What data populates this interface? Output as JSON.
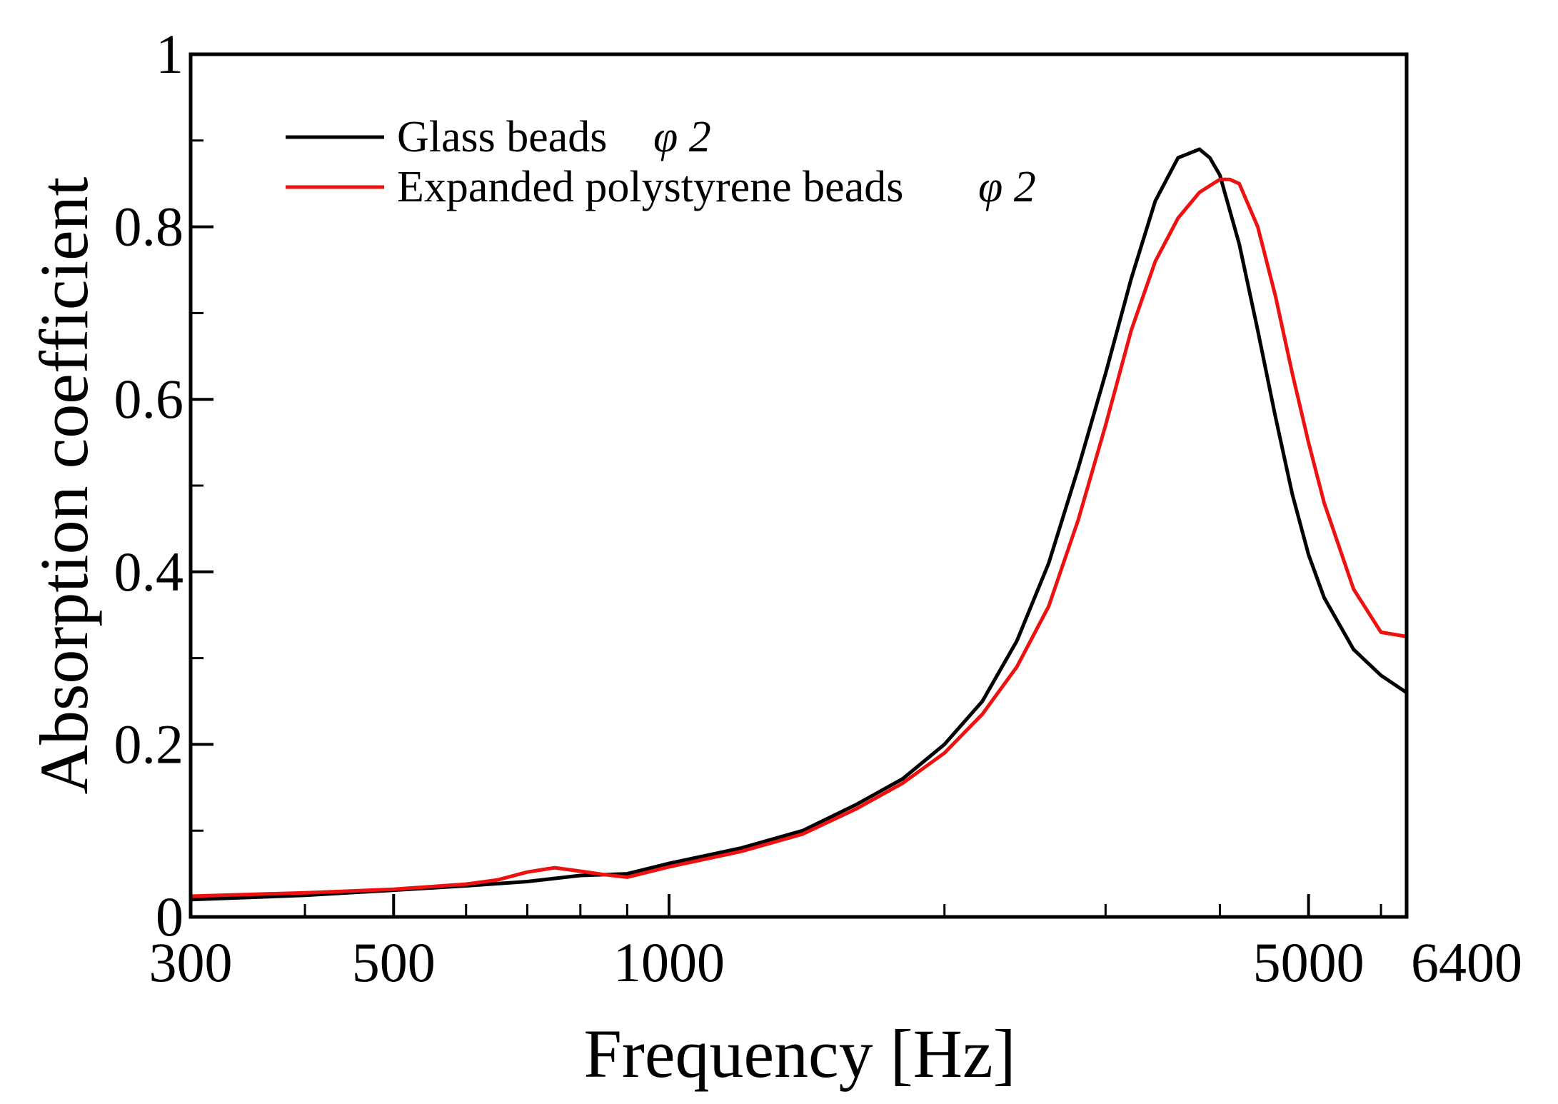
{
  "chart_data": {
    "type": "line",
    "title": "",
    "xlabel": "Frequency [Hz]",
    "ylabel": "Absorption coefficient",
    "xscale": "log",
    "xlim": [
      300,
      6400
    ],
    "ylim": [
      0,
      1
    ],
    "grid": false,
    "legend_position": "top-left",
    "x_ticks": [
      {
        "value": 300,
        "label": "300"
      },
      {
        "value": 500,
        "label": "500"
      },
      {
        "value": 1000,
        "label": "1000"
      },
      {
        "value": 5000,
        "label": "5000"
      },
      {
        "value": 6400,
        "label": "6400"
      }
    ],
    "x_minor_ticks": [
      400,
      600,
      700,
      800,
      900,
      2000,
      3000,
      4000,
      6000
    ],
    "y_ticks": [
      {
        "value": 0,
        "label": "0"
      },
      {
        "value": 0.2,
        "label": "0.2"
      },
      {
        "value": 0.4,
        "label": "0.4"
      },
      {
        "value": 0.6,
        "label": "0.6"
      },
      {
        "value": 0.8,
        "label": "0.8"
      },
      {
        "value": 1,
        "label": "1"
      }
    ],
    "y_minor_ticks": [
      0.1,
      0.3,
      0.5,
      0.7,
      0.9
    ],
    "series": [
      {
        "name": "Glass beads φ 2",
        "legend_label": "Glass beads",
        "legend_symbol": "φ 2",
        "color": "#000000",
        "x": [
          300,
          400,
          500,
          600,
          700,
          800,
          900,
          1000,
          1200,
          1400,
          1600,
          1800,
          2000,
          2200,
          2400,
          2600,
          2800,
          3000,
          3200,
          3400,
          3600,
          3800,
          3900,
          4000,
          4200,
          4400,
          4600,
          4800,
          5000,
          5200,
          5600,
          6000,
          6400
        ],
        "y": [
          0.02,
          0.025,
          0.031,
          0.036,
          0.041,
          0.048,
          0.05,
          0.062,
          0.08,
          0.1,
          0.13,
          0.16,
          0.2,
          0.25,
          0.32,
          0.41,
          0.52,
          0.63,
          0.74,
          0.83,
          0.88,
          0.89,
          0.88,
          0.86,
          0.78,
          0.68,
          0.58,
          0.49,
          0.42,
          0.37,
          0.31,
          0.28,
          0.26
        ]
      },
      {
        "name": "Expanded polystyrene beads φ 2",
        "legend_label": "Expanded polystyrene beads",
        "legend_symbol": "φ 2",
        "color": "#ee1111",
        "x": [
          300,
          400,
          500,
          600,
          650,
          700,
          750,
          800,
          850,
          900,
          1000,
          1200,
          1400,
          1600,
          1800,
          2000,
          2200,
          2400,
          2600,
          2800,
          3000,
          3200,
          3400,
          3600,
          3800,
          4000,
          4100,
          4200,
          4400,
          4600,
          4800,
          5000,
          5200,
          5600,
          6000,
          6400
        ],
        "y": [
          0.024,
          0.028,
          0.032,
          0.038,
          0.043,
          0.052,
          0.057,
          0.053,
          0.049,
          0.046,
          0.058,
          0.076,
          0.096,
          0.125,
          0.155,
          0.19,
          0.235,
          0.29,
          0.36,
          0.46,
          0.57,
          0.68,
          0.76,
          0.81,
          0.84,
          0.855,
          0.855,
          0.85,
          0.8,
          0.72,
          0.63,
          0.55,
          0.48,
          0.38,
          0.33,
          0.325
        ]
      }
    ]
  }
}
